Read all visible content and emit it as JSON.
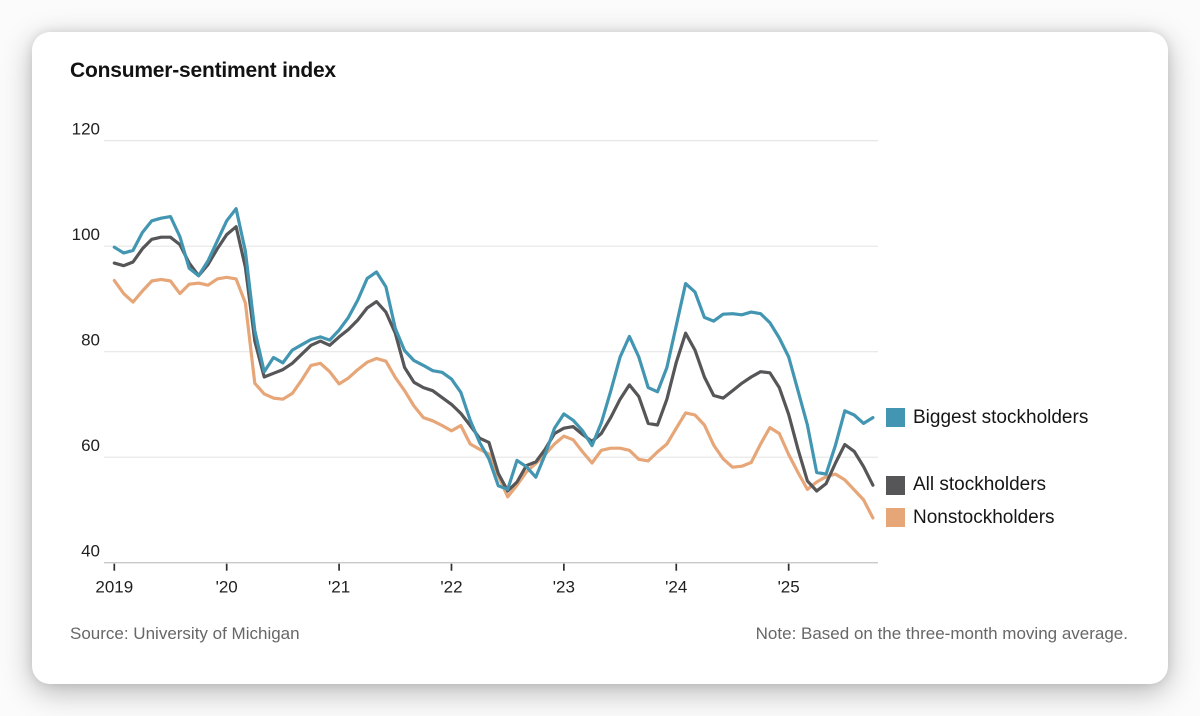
{
  "card": {
    "title": "Consumer-sentiment index",
    "source": "Source: University of Michigan",
    "note": "Note: Based on the three-month moving average."
  },
  "colors": {
    "biggest_stockholders": "#4296B2",
    "all_stockholders": "#565659",
    "nonstockholders": "#E6A678",
    "gridline": "#e6e6e6",
    "axis_line": "#c9c9c9",
    "tick": "#2e2e2e",
    "tick_label": "#1f1f1f",
    "card_bg": "#ffffff"
  },
  "chart_data": {
    "type": "line",
    "title": "Consumer-sentiment index",
    "xlabel": "",
    "ylabel": "",
    "ylim": [
      40,
      120
    ],
    "y_ticks": [
      40,
      60,
      80,
      100,
      120
    ],
    "grid": "horizontal",
    "x_unit": "month",
    "x_range": {
      "start": "Jan 2019",
      "end": "Oct 2025",
      "interval": "monthly"
    },
    "x_tick_labels": [
      "2019",
      "'20",
      "'21",
      "'22",
      "'23",
      "'24",
      "'25"
    ],
    "x_tick_month_indices": [
      0,
      12,
      24,
      36,
      48,
      60,
      72
    ],
    "legend_position": "right-of-plot-at-line-ends",
    "series": [
      {
        "name": "Biggest stockholders",
        "color": "#4296B2",
        "values": [
          99.8,
          98.7,
          99.2,
          102.6,
          104.8,
          105.3,
          105.6,
          101.8,
          95.8,
          94.4,
          97.2,
          101.0,
          104.8,
          107.1,
          99.0,
          84.0,
          76.2,
          78.9,
          77.9,
          80.3,
          81.3,
          82.3,
          82.8,
          82.2,
          84.1,
          86.5,
          89.8,
          93.9,
          95.1,
          92.3,
          84.4,
          80.2,
          78.3,
          77.4,
          76.4,
          76.1,
          74.8,
          72.3,
          67.0,
          62.8,
          59.7,
          54.6,
          53.9,
          59.4,
          58.2,
          56.2,
          60.5,
          65.5,
          68.2,
          67.0,
          65.0,
          62.2,
          66.5,
          72.5,
          79.0,
          82.9,
          79.0,
          73.2,
          72.4,
          77.0,
          85.0,
          92.9,
          91.3,
          86.5,
          85.8,
          87.1,
          87.2,
          87.0,
          87.5,
          87.2,
          85.5,
          82.6,
          79.0,
          72.6,
          66.1,
          57.1,
          56.8,
          62.3,
          68.8,
          68.0,
          66.4,
          67.5
        ]
      },
      {
        "name": "All stockholders",
        "color": "#565659",
        "values": [
          96.8,
          96.3,
          97.0,
          99.5,
          101.3,
          101.7,
          101.7,
          100.3,
          96.8,
          94.4,
          96.5,
          99.5,
          102.2,
          103.7,
          96.0,
          82.0,
          75.2,
          75.9,
          76.6,
          77.8,
          79.5,
          81.2,
          82.0,
          81.2,
          82.8,
          84.2,
          86.0,
          88.3,
          89.5,
          87.5,
          83.5,
          77.0,
          74.2,
          73.2,
          72.6,
          71.3,
          70.0,
          68.3,
          66.0,
          63.6,
          62.8,
          56.9,
          53.6,
          55.3,
          58.4,
          59.1,
          61.5,
          64.5,
          65.5,
          65.8,
          64.3,
          63.0,
          64.5,
          67.5,
          71.0,
          73.7,
          71.5,
          66.4,
          66.1,
          71.0,
          78.0,
          83.5,
          80.3,
          75.2,
          71.7,
          71.2,
          72.6,
          74.0,
          75.2,
          76.2,
          76.0,
          73.2,
          68.1,
          61.5,
          55.5,
          53.6,
          55.0,
          58.9,
          62.4,
          61.1,
          58.2,
          54.7
        ]
      },
      {
        "name": "Nonstockholders",
        "color": "#E6A678",
        "values": [
          93.5,
          91.0,
          89.4,
          91.5,
          93.4,
          93.7,
          93.4,
          91.0,
          92.8,
          93.0,
          92.6,
          93.8,
          94.1,
          93.8,
          89.2,
          74.0,
          72.0,
          71.2,
          71.0,
          72.1,
          74.6,
          77.4,
          77.8,
          76.2,
          73.9,
          75.0,
          76.6,
          78.0,
          78.7,
          78.2,
          75.1,
          72.6,
          69.7,
          67.5,
          66.9,
          66.0,
          65.0,
          66.0,
          62.5,
          61.5,
          60.6,
          56.5,
          52.5,
          54.7,
          57.2,
          58.8,
          60.5,
          62.5,
          64.0,
          63.3,
          61.0,
          58.9,
          61.3,
          61.7,
          61.7,
          61.3,
          59.6,
          59.3,
          61.0,
          62.5,
          65.5,
          68.4,
          68.0,
          66.1,
          62.3,
          59.7,
          58.1,
          58.3,
          59.0,
          62.5,
          65.6,
          64.5,
          60.5,
          57.1,
          53.9,
          55.3,
          56.3,
          56.8,
          55.7,
          53.8,
          51.9,
          48.5
        ]
      }
    ]
  }
}
